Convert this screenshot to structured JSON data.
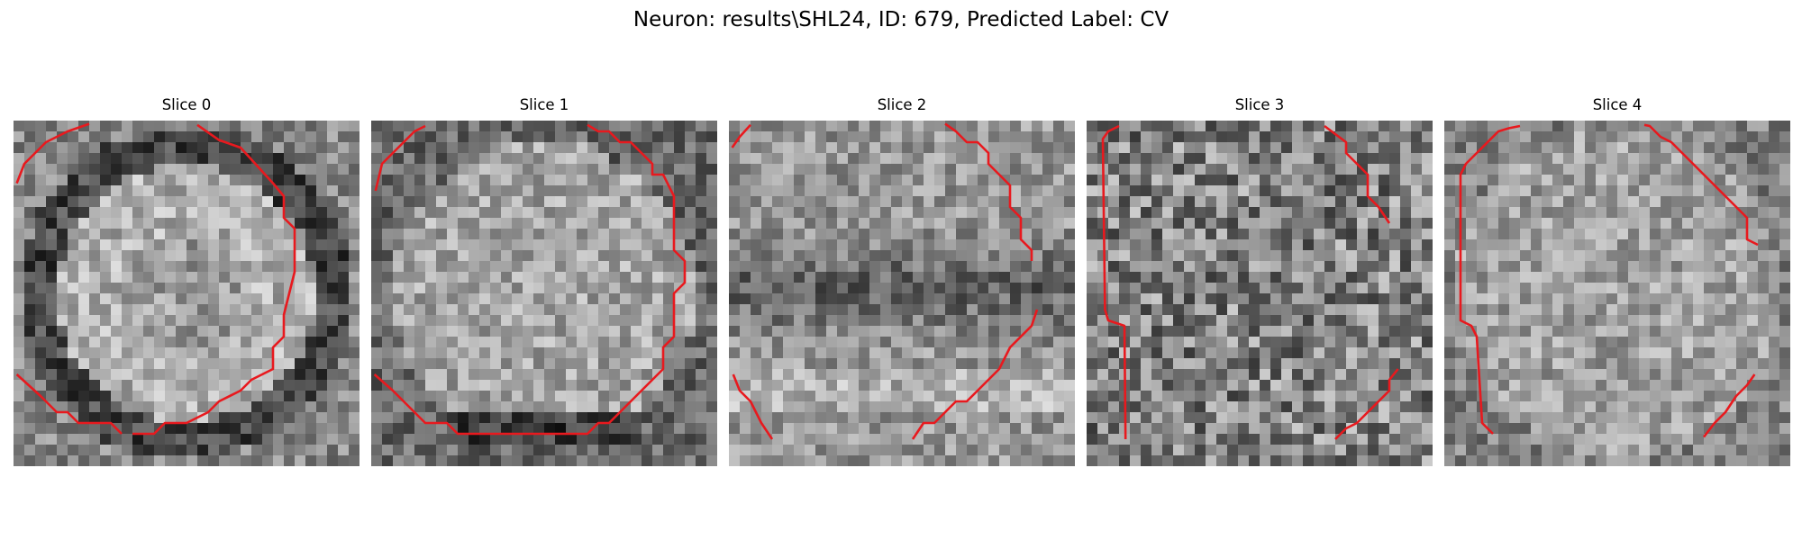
{
  "figure": {
    "title": "Neuron: results\\SHL24, ID: 679, Predicted Label: CV"
  },
  "panels": [
    {
      "title": "Slice 0",
      "seed": 11,
      "pattern": "ring",
      "contour": "ring"
    },
    {
      "title": "Slice 1",
      "seed": 23,
      "pattern": "bright",
      "contour": "bright"
    },
    {
      "title": "Slice 2",
      "seed": 37,
      "pattern": "banded",
      "contour": "corners"
    },
    {
      "title": "Slice 3",
      "seed": 53,
      "pattern": "noisy",
      "contour": "sides"
    },
    {
      "title": "Slice 4",
      "seed": 71,
      "pattern": "soft",
      "contour": "edge"
    }
  ],
  "colors": {
    "contour": "#e8191e",
    "background": "#ffffff"
  }
}
